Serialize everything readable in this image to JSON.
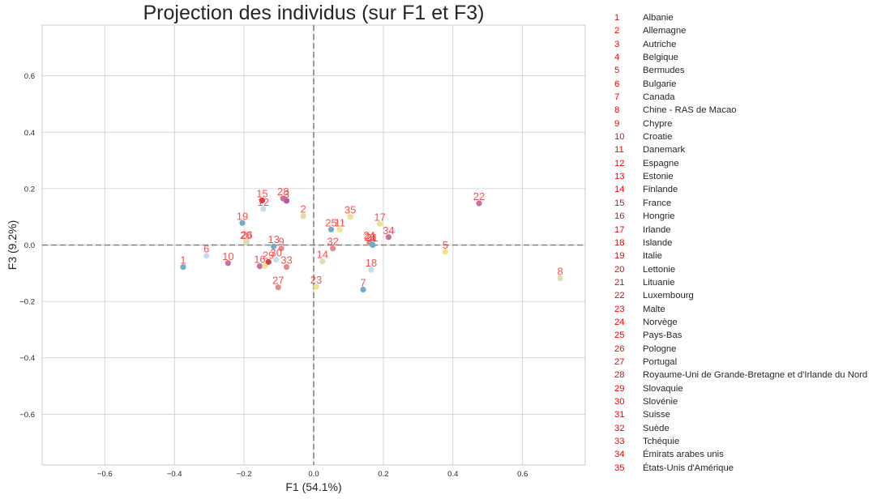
{
  "chart_data": {
    "type": "scatter",
    "title": "Projection des individus (sur F1 et F3)",
    "xlabel": "F1 (54.1%)",
    "ylabel": "F3 (9.2%)",
    "xlim": [
      -0.78,
      0.78
    ],
    "ylim": [
      -0.78,
      0.78
    ],
    "xticks": [
      -0.6,
      -0.4,
      -0.2,
      0.0,
      0.2,
      0.4,
      0.6
    ],
    "yticks": [
      -0.6,
      -0.4,
      -0.2,
      0.0,
      0.2,
      0.4,
      0.6
    ],
    "xtick_labels": [
      "−0.6",
      "−0.4",
      "−0.2",
      "0.0",
      "0.2",
      "0.4",
      "0.6"
    ],
    "ytick_labels": [
      "−0.6",
      "−0.4",
      "−0.2",
      "0.0",
      "0.2",
      "0.4",
      "0.6"
    ],
    "grid": true,
    "reference_lines": [
      {
        "axis": "x",
        "value": 0,
        "style": "dashed"
      },
      {
        "axis": "y",
        "value": 0,
        "style": "dashed"
      }
    ],
    "points": [
      {
        "label": "1",
        "x": -0.375,
        "y": -0.078,
        "color": "#6fa8c7"
      },
      {
        "label": "2",
        "x": -0.03,
        "y": 0.103,
        "color": "#d9dfa8"
      },
      {
        "label": "3",
        "x": -0.078,
        "y": 0.157,
        "color": "#b0509a"
      },
      {
        "label": "4",
        "x": 0.17,
        "y": 0.0,
        "color": "#6fa8c7"
      },
      {
        "label": "5",
        "x": 0.378,
        "y": -0.024,
        "color": "#ece288"
      },
      {
        "label": "6",
        "x": -0.308,
        "y": -0.038,
        "color": "#c4dbe9"
      },
      {
        "label": "7",
        "x": 0.142,
        "y": -0.158,
        "color": "#6fa8c7"
      },
      {
        "label": "8",
        "x": 0.708,
        "y": -0.118,
        "color": "#d9dfa8"
      },
      {
        "label": "9",
        "x": -0.093,
        "y": -0.012,
        "color": "#e2858a"
      },
      {
        "label": "10",
        "x": -0.246,
        "y": -0.064,
        "color": "#c2679f"
      },
      {
        "label": "11",
        "x": 0.075,
        "y": 0.054,
        "color": "#ece288"
      },
      {
        "label": "12",
        "x": -0.145,
        "y": 0.128,
        "color": "#c4dbe9"
      },
      {
        "label": "13",
        "x": -0.115,
        "y": -0.005,
        "color": "#6fa8c7"
      },
      {
        "label": "14",
        "x": 0.025,
        "y": -0.058,
        "color": "#d9dfa8"
      },
      {
        "label": "15",
        "x": -0.148,
        "y": 0.158,
        "color": "#d6323c"
      },
      {
        "label": "16",
        "x": -0.155,
        "y": -0.075,
        "color": "#c2679f"
      },
      {
        "label": "17",
        "x": 0.19,
        "y": 0.075,
        "color": "#ece288"
      },
      {
        "label": "18",
        "x": 0.165,
        "y": -0.088,
        "color": "#c4dbe9"
      },
      {
        "label": "19",
        "x": -0.205,
        "y": 0.078,
        "color": "#6fa8c7"
      },
      {
        "label": "20",
        "x": -0.195,
        "y": 0.01,
        "color": "#d9dfa8"
      },
      {
        "label": "21",
        "x": 0.162,
        "y": 0.005,
        "color": "#d9dfa8"
      },
      {
        "label": "22",
        "x": 0.475,
        "y": 0.148,
        "color": "#c2679f"
      },
      {
        "label": "23",
        "x": 0.007,
        "y": -0.148,
        "color": "#ece288"
      },
      {
        "label": "24",
        "x": 0.16,
        "y": 0.01,
        "color": "#e2858a"
      },
      {
        "label": "25",
        "x": 0.05,
        "y": 0.055,
        "color": "#6fa8c7"
      },
      {
        "label": "26",
        "x": -0.192,
        "y": 0.012,
        "color": "#d9dfa8"
      },
      {
        "label": "27",
        "x": -0.102,
        "y": -0.15,
        "color": "#e2858a"
      },
      {
        "label": "28",
        "x": -0.088,
        "y": 0.165,
        "color": "#c2679f"
      },
      {
        "label": "29",
        "x": -0.13,
        "y": -0.06,
        "color": "#d6323c"
      },
      {
        "label": "30",
        "x": -0.108,
        "y": -0.052,
        "color": "#c4dbe9"
      },
      {
        "label": "31",
        "x": 0.168,
        "y": 0.002,
        "color": "#6fa8c7"
      },
      {
        "label": "32",
        "x": 0.055,
        "y": -0.012,
        "color": "#e2858a"
      },
      {
        "label": "33",
        "x": -0.078,
        "y": -0.078,
        "color": "#e2858a"
      },
      {
        "label": "34",
        "x": 0.215,
        "y": 0.028,
        "color": "#c2679f"
      },
      {
        "label": "35",
        "x": 0.105,
        "y": 0.1,
        "color": "#ece288"
      },
      {
        "label": "",
        "x": -0.14,
        "y": -0.075,
        "color": "#ece288"
      }
    ]
  },
  "legend": {
    "entries": [
      {
        "num": "1",
        "name": "Albanie"
      },
      {
        "num": "2",
        "name": "Allemagne"
      },
      {
        "num": "3",
        "name": "Autriche"
      },
      {
        "num": "4",
        "name": "Belgique"
      },
      {
        "num": "5",
        "name": "Bermudes"
      },
      {
        "num": "6",
        "name": "Bulgarie"
      },
      {
        "num": "7",
        "name": "Canada"
      },
      {
        "num": "8",
        "name": "Chine - RAS de Macao"
      },
      {
        "num": "9",
        "name": "Chypre"
      },
      {
        "num": "10",
        "name": "Croatie"
      },
      {
        "num": "11",
        "name": "Danemark"
      },
      {
        "num": "12",
        "name": "Espagne"
      },
      {
        "num": "13",
        "name": "Estonie"
      },
      {
        "num": "14",
        "name": "Finlande"
      },
      {
        "num": "15",
        "name": "France"
      },
      {
        "num": "16",
        "name": "Hongrie"
      },
      {
        "num": "17",
        "name": "Irlande"
      },
      {
        "num": "18",
        "name": "Islande"
      },
      {
        "num": "19",
        "name": "Italie"
      },
      {
        "num": "20",
        "name": "Lettonie"
      },
      {
        "num": "21",
        "name": "Lituanie"
      },
      {
        "num": "22",
        "name": "Luxembourg"
      },
      {
        "num": "23",
        "name": "Malte"
      },
      {
        "num": "24",
        "name": "Norvège"
      },
      {
        "num": "25",
        "name": "Pays-Bas"
      },
      {
        "num": "26",
        "name": "Pologne"
      },
      {
        "num": "27",
        "name": "Portugal"
      },
      {
        "num": "28",
        "name": "Royaume-Uni de Grande-Bretagne et d'Irlande du Nord"
      },
      {
        "num": "29",
        "name": "Slovaquie"
      },
      {
        "num": "30",
        "name": "Slovénie"
      },
      {
        "num": "31",
        "name": "Suisse"
      },
      {
        "num": "32",
        "name": "Suède"
      },
      {
        "num": "33",
        "name": "Tchéquie"
      },
      {
        "num": "34",
        "name": "Émirats arabes unis"
      },
      {
        "num": "35",
        "name": "États-Unis d'Amérique"
      }
    ]
  },
  "colors": {
    "grid": "#cccccc",
    "axis_text": "#262626",
    "point_label": "#ff3b3b",
    "legend_number": "#ff0000",
    "reference_line": "#808080"
  }
}
